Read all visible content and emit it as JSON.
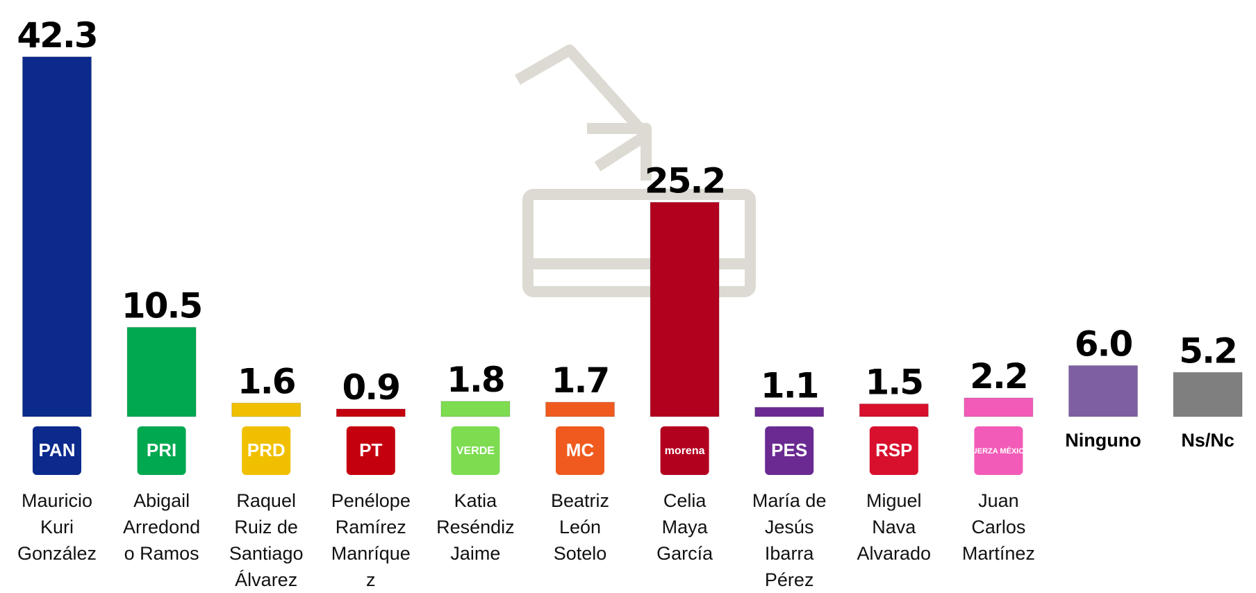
{
  "chart_data": {
    "type": "bar",
    "categories": [
      "Mauricio Kuri González",
      "Abigail Arredondo Ramos",
      "Raquel Ruiz de Santiago Álvarez",
      "Penélope Ramírez Manríquez",
      "Katia Reséndiz Jaime",
      "Beatriz León Sotelo",
      "Celia Maya García",
      "María de Jesús Ibarra Pérez",
      "Miguel Nava Alvarado",
      "Juan Carlos Martínez",
      "Ninguno",
      "Ns/Nc"
    ],
    "logos": [
      "PAN",
      "PRI",
      "PRD",
      "PT",
      "VERDE",
      "MC",
      "morena",
      "PES",
      "RSP",
      "FUERZA MÉXICO",
      null,
      null
    ],
    "values": [
      42.3,
      10.5,
      1.6,
      0.9,
      1.8,
      1.7,
      25.2,
      1.1,
      1.5,
      2.2,
      6.0,
      5.2
    ],
    "value_labels": [
      "42.3",
      "10.5",
      "1.6",
      "0.9",
      "1.8",
      "1.7",
      "25.2",
      "1.1",
      "1.5",
      "2.2",
      "6.0",
      "5.2"
    ],
    "colors": [
      "#0b2a8c",
      "#00a850",
      "#f0c000",
      "#c4000f",
      "#7ddc50",
      "#f05a1e",
      "#b2001f",
      "#6a2a92",
      "#d8102e",
      "#f25cb8",
      "#7e5fa2",
      "#7f7f7f"
    ]
  }
}
